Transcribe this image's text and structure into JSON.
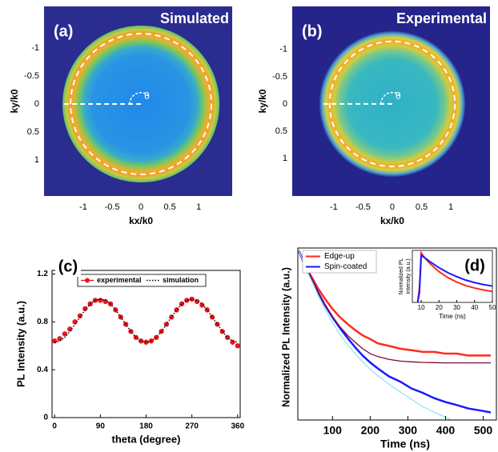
{
  "chart_data": [
    {
      "type": "kspace",
      "label": "(a)",
      "title": "Simulated",
      "annotation": "θ",
      "xlabel": "kx/k0",
      "ylabel": "ky/k0",
      "xlim": [
        -1.68,
        1.58
      ],
      "ylim": [
        -1.74,
        1.64
      ],
      "xticks": [
        -1,
        -0.5,
        0,
        0.5,
        1
      ],
      "yticks": [
        -1,
        -0.5,
        0,
        0.5,
        1
      ]
    },
    {
      "type": "kspace",
      "label": "(b)",
      "title": "Experimental",
      "annotation": "θ",
      "xlabel": "kx/k0",
      "ylabel": "ky/k0",
      "xlim": [
        -1.71,
        1.67
      ],
      "ylim": [
        -1.79,
        1.69
      ],
      "xticks": [
        -1,
        -0.5,
        0,
        0.5,
        1
      ],
      "yticks": [
        -1,
        -0.5,
        0,
        0.5,
        1
      ]
    },
    {
      "type": "line",
      "label": "(c)",
      "xlabel": "theta (degree)",
      "ylabel": "PL Intensity (a.u.)",
      "xlim": [
        -5,
        365
      ],
      "ylim": [
        0,
        1.23
      ],
      "xticks": [
        0,
        90,
        180,
        270,
        360
      ],
      "yticks": [
        0,
        0.4,
        0.8,
        1.2
      ],
      "x": [
        0,
        10,
        20,
        30,
        40,
        50,
        60,
        70,
        80,
        90,
        100,
        110,
        120,
        130,
        140,
        150,
        160,
        170,
        180,
        190,
        200,
        210,
        220,
        230,
        240,
        250,
        260,
        270,
        280,
        290,
        300,
        310,
        320,
        330,
        340,
        350,
        360
      ],
      "series": [
        {
          "name": "experimental",
          "color": "#e8191e",
          "marker": "circle",
          "values": [
            0.64,
            0.66,
            0.7,
            0.74,
            0.8,
            0.85,
            0.91,
            0.95,
            0.98,
            0.98,
            0.97,
            0.95,
            0.9,
            0.84,
            0.78,
            0.72,
            0.67,
            0.64,
            0.63,
            0.64,
            0.67,
            0.72,
            0.78,
            0.84,
            0.9,
            0.95,
            0.98,
            0.99,
            0.97,
            0.94,
            0.9,
            0.84,
            0.78,
            0.72,
            0.67,
            0.63,
            0.6
          ]
        },
        {
          "name": "simulation",
          "color": "#000000",
          "style": "dotted",
          "values": [
            0.63,
            0.64,
            0.67,
            0.72,
            0.78,
            0.84,
            0.9,
            0.95,
            0.98,
            0.99,
            0.98,
            0.95,
            0.9,
            0.84,
            0.78,
            0.72,
            0.67,
            0.64,
            0.63,
            0.64,
            0.67,
            0.72,
            0.78,
            0.84,
            0.9,
            0.95,
            0.98,
            0.99,
            0.98,
            0.95,
            0.9,
            0.84,
            0.78,
            0.72,
            0.67,
            0.64,
            0.63
          ]
        }
      ]
    },
    {
      "type": "decay",
      "label": "(d)",
      "xlabel": "Time (ns)",
      "ylabel": "Normalized PL Intensity (a.u.)",
      "ylog": true,
      "xlim": [
        8,
        535
      ],
      "ylim": [
        0.0008,
        1.1
      ],
      "xticks": [
        100,
        200,
        300,
        400,
        500
      ],
      "x": [
        10,
        20,
        30,
        40,
        50,
        60,
        80,
        100,
        120,
        140,
        160,
        180,
        200,
        220,
        250,
        280,
        310,
        340,
        370,
        400,
        430,
        460,
        490,
        520
      ],
      "series": [
        {
          "name": "Edge-up",
          "color": "#ff2a1a",
          "values": [
            1,
            0.7,
            0.5,
            0.37,
            0.28,
            0.21,
            0.13,
            0.085,
            0.06,
            0.045,
            0.035,
            0.028,
            0.024,
            0.02,
            0.018,
            0.016,
            0.015,
            0.014,
            0.014,
            0.013,
            0.013,
            0.012,
            0.012,
            0.012
          ]
        },
        {
          "name": "Spin-coated",
          "color": "#1a1aff",
          "values": [
            1,
            0.68,
            0.47,
            0.34,
            0.25,
            0.18,
            0.1,
            0.06,
            0.038,
            0.025,
            0.017,
            0.012,
            0.009,
            0.007,
            0.005,
            0.004,
            0.003,
            0.0025,
            0.002,
            0.0017,
            0.0015,
            0.0013,
            0.0012,
            0.0011
          ]
        }
      ],
      "fits": [
        {
          "color": "#7a0a3a",
          "values": [
            1,
            0.68,
            0.47,
            0.34,
            0.25,
            0.18,
            0.1,
            0.062,
            0.04,
            0.028,
            0.021,
            0.016,
            0.013,
            0.0115,
            0.0102,
            0.0095,
            0.0092,
            0.009,
            0.0089,
            0.0088,
            0.0088,
            0.0088,
            0.0088,
            0.0088
          ]
        },
        {
          "color": "#8fe6f4",
          "values": [
            1,
            0.68,
            0.46,
            0.32,
            0.23,
            0.16,
            0.085,
            0.048,
            0.029,
            0.019,
            0.013,
            0.0092,
            0.0068,
            0.0052,
            0.0036,
            0.0026,
            0.0019,
            0.0014,
            0.0011,
            0.0009,
            0.0007,
            0.0006,
            0.0005,
            0.0004
          ]
        }
      ],
      "inset": {
        "xlabel": "Time (ns)",
        "ylabel": [
          "Normalized PL",
          "Intensity (a.u.)"
        ],
        "xlim": [
          5,
          50
        ],
        "ylim": [
          0,
          1.05
        ],
        "xticks": [
          10,
          20,
          30,
          40,
          50
        ],
        "x": [
          8,
          9,
          10,
          12,
          15,
          20,
          25,
          30,
          35,
          40,
          45,
          50
        ],
        "series": [
          {
            "color": "#ff2a1a",
            "values": [
              0,
              0.3,
              1,
              0.9,
              0.78,
              0.62,
              0.5,
              0.41,
              0.34,
              0.29,
              0.25,
              0.22
            ]
          },
          {
            "color": "#1a1aff",
            "values": [
              0,
              0.2,
              0.95,
              0.9,
              0.82,
              0.7,
              0.6,
              0.52,
              0.45,
              0.4,
              0.36,
              0.33
            ]
          }
        ]
      }
    }
  ]
}
